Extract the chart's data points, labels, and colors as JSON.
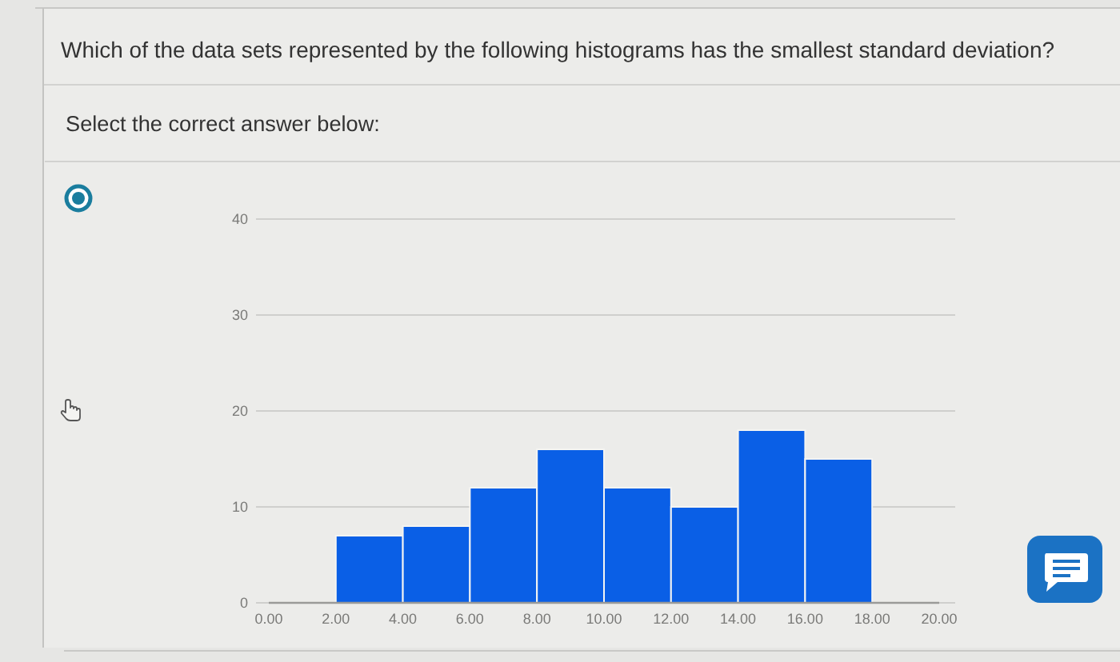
{
  "chart_data": {
    "type": "histogram",
    "title": "Which of the data sets represented by the following histograms has the smallest standard deviation?",
    "subtitle": "Select the correct answer below:",
    "bins": [
      2,
      4,
      6,
      8,
      10,
      12,
      14,
      16,
      18
    ],
    "values": [
      7,
      8,
      12,
      16,
      12,
      10,
      18,
      15
    ],
    "color": "#0a5fe6",
    "xlim": [
      0,
      20
    ],
    "xticks": [
      {
        "value": 0,
        "label": "0.00"
      },
      {
        "value": 2,
        "label": "2.00"
      },
      {
        "value": 4,
        "label": "4.00"
      },
      {
        "value": 6,
        "label": "6.00"
      },
      {
        "value": 8,
        "label": "8.00"
      },
      {
        "value": 10,
        "label": "10.00"
      },
      {
        "value": 12,
        "label": "12.00"
      },
      {
        "value": 14,
        "label": "14.00"
      },
      {
        "value": 16,
        "label": "16.00"
      },
      {
        "value": 18,
        "label": "18.00"
      },
      {
        "value": 20,
        "label": "20.00"
      }
    ],
    "ylim": [
      0,
      40
    ],
    "yticks": [
      0,
      10,
      20,
      30,
      40
    ],
    "grid": "y"
  }
}
